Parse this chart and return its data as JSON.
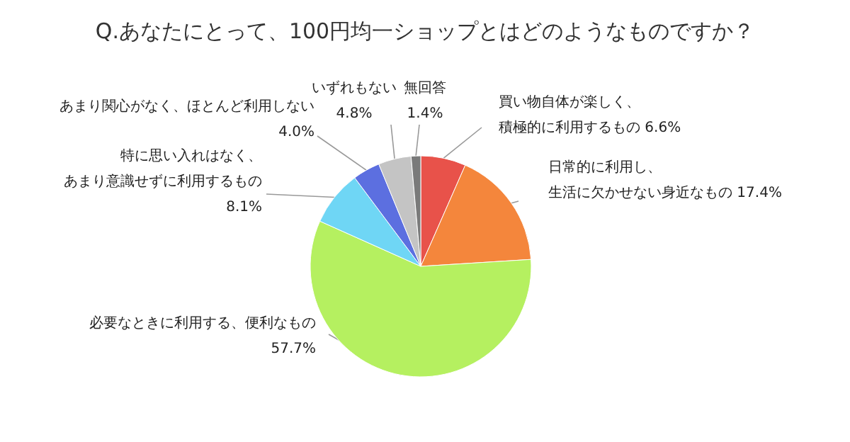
{
  "chart_data": {
    "type": "pie",
    "title": "Q.あなたにとって、100円均一ショップとはどのようなものですか？",
    "categories": [
      "買い物自体が楽しく、積極的に利用するもの",
      "日常的に利用し、生活に欠かせない身近なもの",
      "必要なときに利用する、便利なもの",
      "特に思い入れはなく、あまり意識せずに利用するもの",
      "あまり関心がなく、ほとんど利用しない",
      "いずれもない",
      "無回答"
    ],
    "values": [
      6.6,
      17.4,
      57.7,
      8.1,
      4.0,
      4.8,
      1.4
    ],
    "value_labels": [
      "6.6%",
      "17.4%",
      "57.7%",
      "8.1%",
      "4.0%",
      "4.8%",
      "1.4%"
    ],
    "colors": [
      "#e8524a",
      "#f4863c",
      "#b5f060",
      "#6fd6f5",
      "#5c6fe0",
      "#c4c4c4",
      "#7a7a7a"
    ],
    "legend": false
  }
}
